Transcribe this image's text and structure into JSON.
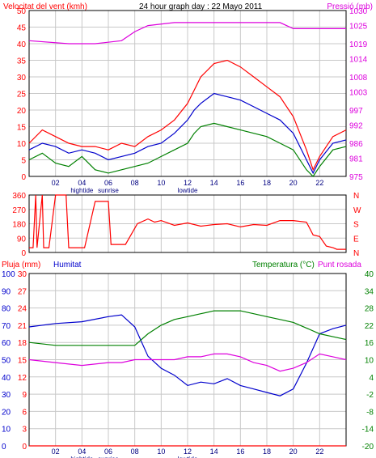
{
  "header": {
    "wind_label": "Velocitat del vent (kmh)",
    "title": "24 hour graph day : 22 Mayo 2011",
    "pressure_label": "Pressió (mb)"
  },
  "chart_data": [
    {
      "type": "line",
      "title": "24 hour graph day : 22 Mayo 2011",
      "ylabel_left": "Velocitat del vent (kmh)",
      "ylabel_right": "Pressió (mb)",
      "x_ticks": [
        "02",
        "04",
        "06",
        "08",
        "10",
        "12",
        "14",
        "16",
        "18",
        "20",
        "22"
      ],
      "x_sublabels": {
        "04": "hightide",
        "06": "sunrise",
        "12": "lowtide"
      },
      "ylim_left": [
        0,
        50
      ],
      "y_ticks_left": [
        0,
        5,
        10,
        15,
        20,
        25,
        30,
        35,
        40,
        45,
        50
      ],
      "ylim_right": [
        975,
        1030
      ],
      "y_ticks_right": [
        975,
        981,
        986,
        992,
        997,
        1003,
        1008,
        1014,
        1019,
        1025,
        1030
      ],
      "grid": true,
      "series": [
        {
          "name": "",
          "color": "#ff0000",
          "axis": "left",
          "x": [
            0,
            1,
            2,
            3,
            4,
            5,
            6,
            7,
            8,
            9,
            10,
            11,
            12,
            12.5,
            13,
            14,
            15,
            16,
            17,
            18,
            19,
            20,
            21,
            21.5,
            22,
            23,
            24
          ],
          "values": [
            10,
            14,
            12,
            10,
            9,
            9,
            8,
            10,
            9,
            12,
            14,
            17,
            22,
            26,
            30,
            34,
            35,
            33,
            30,
            27,
            24,
            18,
            8,
            2,
            6,
            12,
            14
          ]
        },
        {
          "name": "",
          "color": "#0000cc",
          "axis": "left",
          "x": [
            0,
            1,
            2,
            3,
            4,
            5,
            6,
            7,
            8,
            9,
            10,
            11,
            12,
            12.5,
            13,
            14,
            15,
            16,
            17,
            18,
            19,
            20,
            21,
            21.5,
            22,
            23,
            24
          ],
          "values": [
            8,
            10,
            9,
            7,
            8,
            7,
            5,
            6,
            7,
            9,
            10,
            13,
            17,
            20,
            22,
            25,
            24,
            23,
            21,
            19,
            17,
            13,
            5,
            1,
            5,
            10,
            11
          ]
        },
        {
          "name": "",
          "color": "#008000",
          "axis": "left",
          "x": [
            0,
            1,
            2,
            3,
            4,
            5,
            6,
            7,
            8,
            9,
            10,
            11,
            12,
            12.5,
            13,
            14,
            15,
            16,
            17,
            18,
            19,
            20,
            21,
            21.5,
            22,
            23,
            24
          ],
          "values": [
            5,
            7,
            4,
            3,
            6,
            2,
            1,
            2,
            3,
            4,
            6,
            8,
            10,
            13,
            15,
            16,
            15,
            14,
            13,
            12,
            10,
            8,
            2,
            0,
            3,
            8,
            9
          ]
        },
        {
          "name": "",
          "color": "#dd00dd",
          "axis": "right",
          "x": [
            0,
            3,
            5,
            7,
            8,
            9,
            11,
            13,
            15,
            17,
            19,
            20,
            21,
            24
          ],
          "values": [
            1020,
            1019,
            1019,
            1020,
            1023,
            1025,
            1026,
            1026,
            1026,
            1026,
            1026,
            1024,
            1024,
            1024
          ]
        }
      ]
    },
    {
      "type": "line",
      "title": "",
      "ylim": [
        0,
        360
      ],
      "y_ticks": [
        0,
        90,
        180,
        270,
        360
      ],
      "compass_labels": [
        "N",
        "W",
        "S",
        "E",
        "N"
      ],
      "grid": true,
      "series": [
        {
          "name": "",
          "color": "#ff0000",
          "x": [
            0,
            0.3,
            0.5,
            0.6,
            1.0,
            1.1,
            1.5,
            2.0,
            2.2,
            2.8,
            3.0,
            3.5,
            4.0,
            4.2,
            5.0,
            5.2,
            6.0,
            6.2,
            7.0,
            7.3,
            8.2,
            9.0,
            9.5,
            10,
            11,
            12,
            13,
            14,
            15,
            16,
            17,
            18,
            19,
            20,
            21,
            21.5,
            22,
            22.5,
            23,
            23.3,
            24
          ],
          "values": [
            30,
            30,
            360,
            30,
            360,
            30,
            30,
            360,
            360,
            360,
            30,
            30,
            30,
            30,
            320,
            320,
            320,
            50,
            50,
            50,
            180,
            210,
            190,
            200,
            170,
            185,
            165,
            175,
            180,
            160,
            175,
            170,
            200,
            200,
            190,
            110,
            100,
            40,
            30,
            20,
            20
          ]
        }
      ]
    },
    {
      "type": "line",
      "title": "",
      "ylabel_left": "Pluja (mm)",
      "ylabel_left2": "Humitat",
      "ylabel_right": "Temperatura (°C)",
      "ylabel_right2": "Punt rosada",
      "x_ticks": [
        "02",
        "04",
        "06",
        "08",
        "10",
        "12",
        "14",
        "16",
        "18",
        "20",
        "22"
      ],
      "x_sublabels": {
        "04": "hightide",
        "06": "sunrise",
        "12": "lowtide"
      },
      "ylim_rain": [
        0,
        30
      ],
      "y_ticks_rain": [
        0,
        3,
        6,
        9,
        12,
        15,
        18,
        21,
        24,
        27,
        30
      ],
      "ylim_humidity": [
        0,
        100
      ],
      "y_ticks_humidity": [
        0,
        10,
        20,
        30,
        40,
        50,
        60,
        70,
        80,
        90,
        100
      ],
      "ylim_temp": [
        -20,
        40
      ],
      "y_ticks_temp": [
        -20,
        -14,
        -8,
        -2,
        4,
        10,
        16,
        22,
        28,
        34,
        40
      ],
      "grid": true,
      "series": [
        {
          "name": "Pluja (mm)",
          "color": "#ff0000",
          "axis": "rain",
          "x": [
            0,
            24
          ],
          "values": [
            0,
            0
          ]
        },
        {
          "name": "Humitat",
          "color": "#0000cc",
          "axis": "humidity",
          "x": [
            0,
            2,
            4,
            6,
            7,
            8,
            9,
            10,
            11,
            12,
            13,
            14,
            15,
            16,
            17,
            18,
            19,
            20,
            21,
            22,
            23,
            24
          ],
          "values": [
            69,
            71,
            72,
            75,
            76,
            69,
            52,
            45,
            41,
            35,
            37,
            36,
            39,
            35,
            33,
            31,
            29,
            33,
            48,
            65,
            68,
            70
          ]
        },
        {
          "name": "Temperatura (°C)",
          "color": "#008000",
          "axis": "temp",
          "x": [
            0,
            2,
            4,
            6,
            7,
            8,
            9,
            10,
            11,
            12,
            13,
            14,
            15,
            16,
            17,
            18,
            19,
            20,
            21,
            22,
            23,
            24
          ],
          "values": [
            16,
            15,
            15,
            15,
            15,
            15,
            19,
            22,
            24,
            25,
            26,
            27,
            27,
            27,
            26,
            25,
            24,
            23,
            21,
            19,
            18,
            17
          ]
        },
        {
          "name": "Punt rosada",
          "color": "#dd00dd",
          "axis": "temp",
          "x": [
            0,
            2,
            4,
            6,
            7,
            8,
            9,
            10,
            11,
            12,
            13,
            14,
            15,
            16,
            17,
            18,
            19,
            20,
            21,
            22,
            23,
            24
          ],
          "values": [
            10,
            9,
            8,
            9,
            9,
            10,
            10,
            10,
            10,
            11,
            11,
            12,
            12,
            11,
            9,
            8,
            6,
            7,
            9,
            12,
            11,
            10
          ]
        }
      ]
    }
  ]
}
